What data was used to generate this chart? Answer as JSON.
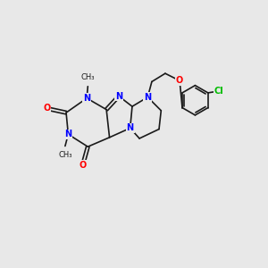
{
  "background_color": "#e8e8e8",
  "bond_color": "#1a1a1a",
  "N_color": "#0000ff",
  "O_color": "#ff0000",
  "Cl_color": "#00bb00",
  "font_size_atom": 7.0,
  "font_size_me": 6.0,
  "line_width": 1.2,
  "xlim": [
    0,
    10
  ],
  "ylim": [
    0,
    10
  ]
}
